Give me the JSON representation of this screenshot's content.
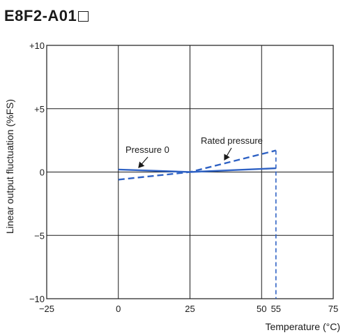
{
  "title": "E8F2-A01",
  "chart_data": {
    "type": "line",
    "title": "E8F2-A01",
    "xlabel": "Temperature (°C)",
    "ylabel": "Linear output fluctuation (%FS)",
    "xlim": [
      -25,
      75
    ],
    "ylim": [
      -10,
      10
    ],
    "x_ticks": [
      -25,
      0,
      25,
      50,
      55,
      75
    ],
    "x_tick_labels": [
      "−25",
      "0",
      "25",
      "50",
      "55",
      "75"
    ],
    "y_ticks": [
      10,
      5,
      0,
      -5,
      -10
    ],
    "y_tick_labels": [
      "+10",
      "+5",
      "0",
      "−5",
      "−10"
    ],
    "grid": true,
    "grid_x": [
      0,
      25,
      50
    ],
    "grid_y": [
      5,
      0,
      -5
    ],
    "series": [
      {
        "name": "Pressure 0",
        "style": "solid",
        "color": "#2f62c4",
        "x": [
          0,
          25,
          55
        ],
        "y": [
          0.2,
          0,
          0.3
        ]
      },
      {
        "name": "Rated pressure",
        "style": "dashed",
        "color": "#2f62c4",
        "x": [
          0,
          25,
          55
        ],
        "y": [
          -0.6,
          0,
          1.7
        ]
      }
    ],
    "reference_line": {
      "x": 55,
      "style": "dashed",
      "color": "#2f62c4"
    },
    "annotations": [
      {
        "text": "Pressure 0",
        "target_series": "Pressure 0"
      },
      {
        "text": "Rated pressure",
        "target_series": "Rated pressure"
      }
    ]
  }
}
